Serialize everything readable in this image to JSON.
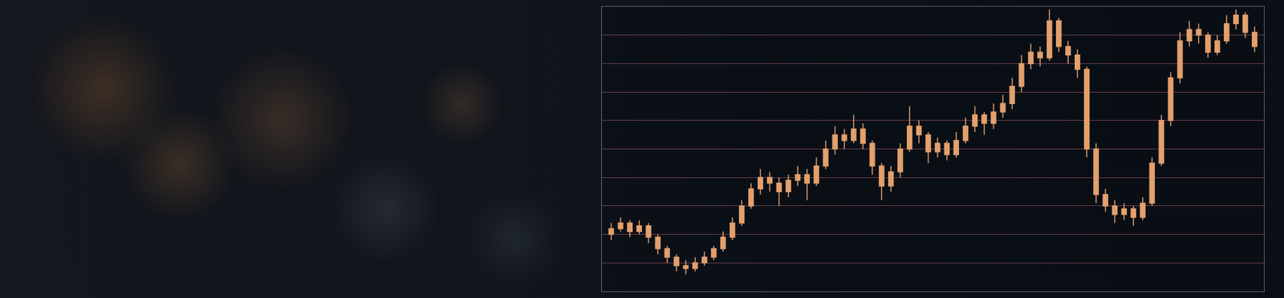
{
  "chart_data": {
    "type": "candlestick",
    "x": [
      0,
      1,
      2,
      3,
      4,
      5,
      6,
      7,
      8,
      9,
      10,
      11,
      12,
      13,
      14,
      15,
      16,
      17,
      18,
      19,
      20,
      21,
      22,
      23,
      24,
      25,
      26,
      27,
      28,
      29,
      30,
      31,
      32,
      33,
      34,
      35,
      36,
      37,
      38,
      39,
      40,
      41,
      42,
      43,
      44,
      45,
      46,
      47,
      48,
      49,
      50,
      51,
      52,
      53,
      54,
      55,
      56,
      57,
      58,
      59,
      60,
      61,
      62,
      63,
      64,
      65,
      66,
      67,
      68,
      69
    ],
    "open": [
      20,
      22,
      24,
      21,
      23,
      19,
      15,
      12,
      9,
      8,
      10,
      12,
      15,
      19,
      24,
      30,
      36,
      40,
      38,
      35,
      39,
      41,
      38,
      44,
      50,
      55,
      53,
      57,
      52,
      44,
      37,
      42,
      50,
      58,
      55,
      49,
      52,
      48,
      53,
      58,
      62,
      59,
      63,
      66,
      72,
      80,
      84,
      82,
      95,
      86,
      83,
      78,
      50,
      34,
      30,
      27,
      29,
      26,
      31,
      45,
      60,
      75,
      88,
      92,
      90,
      84,
      88,
      94,
      97,
      91
    ],
    "high": [
      24,
      26,
      25,
      25,
      24,
      20,
      16,
      13,
      11,
      12,
      14,
      16,
      21,
      26,
      32,
      38,
      43,
      42,
      40,
      41,
      44,
      43,
      47,
      53,
      58,
      57,
      62,
      59,
      53,
      45,
      44,
      52,
      65,
      60,
      56,
      54,
      53,
      56,
      61,
      65,
      63,
      66,
      69,
      75,
      83,
      87,
      86,
      99,
      96,
      88,
      85,
      79,
      52,
      36,
      32,
      31,
      30,
      33,
      47,
      62,
      77,
      91,
      95,
      94,
      91,
      90,
      97,
      99,
      98,
      93
    ],
    "low": [
      18,
      21,
      19,
      20,
      17,
      13,
      10,
      7,
      6,
      7,
      9,
      11,
      14,
      18,
      23,
      29,
      34,
      35,
      30,
      33,
      37,
      32,
      37,
      43,
      48,
      50,
      52,
      50,
      41,
      32,
      35,
      40,
      49,
      52,
      45,
      47,
      46,
      47,
      52,
      56,
      55,
      57,
      61,
      64,
      70,
      78,
      79,
      81,
      84,
      80,
      75,
      47,
      31,
      28,
      24,
      25,
      23,
      25,
      30,
      44,
      58,
      73,
      86,
      87,
      82,
      83,
      87,
      92,
      89,
      84
    ],
    "close": [
      22,
      24,
      21,
      23,
      19,
      15,
      12,
      9,
      8,
      10,
      12,
      15,
      19,
      24,
      30,
      36,
      40,
      38,
      35,
      39,
      41,
      38,
      44,
      50,
      55,
      53,
      57,
      52,
      44,
      37,
      42,
      50,
      58,
      55,
      49,
      52,
      48,
      53,
      58,
      62,
      59,
      63,
      66,
      72,
      80,
      84,
      82,
      95,
      86,
      83,
      78,
      50,
      34,
      30,
      27,
      29,
      26,
      31,
      45,
      60,
      75,
      88,
      92,
      90,
      84,
      88,
      94,
      97,
      91,
      86
    ],
    "color": "#e3a06c",
    "xlim": [
      -1,
      70
    ],
    "ylim": [
      0,
      100
    ],
    "yticks": [
      0,
      10,
      20,
      30,
      40,
      50,
      60,
      70,
      80,
      90,
      100
    ],
    "grid": true,
    "tick_labels": false
  }
}
